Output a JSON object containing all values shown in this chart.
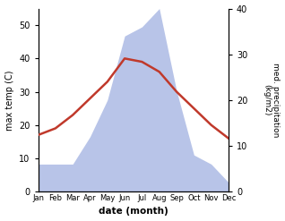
{
  "months": [
    "Jan",
    "Feb",
    "Mar",
    "Apr",
    "May",
    "Jun",
    "Jul",
    "Aug",
    "Sep",
    "Oct",
    "Nov",
    "Dec"
  ],
  "temperature": [
    17,
    19,
    23,
    28,
    33,
    40,
    39,
    36,
    30,
    25,
    20,
    16
  ],
  "precipitation": [
    6,
    6,
    6,
    12,
    20,
    34,
    36,
    40,
    22,
    8,
    6,
    2
  ],
  "temp_color": "#c0392b",
  "precip_fill_color": "#b8c4e8",
  "temp_ylim": [
    0,
    55
  ],
  "precip_ylim": [
    0,
    40
  ],
  "temp_scale_max": 55,
  "xlabel": "date (month)",
  "ylabel_left": "max temp (C)",
  "ylabel_right": "med. precipitation\n(kg/m2)",
  "background_color": "#ffffff",
  "temp_linewidth": 1.8,
  "fig_width": 3.18,
  "fig_height": 2.47,
  "dpi": 100
}
